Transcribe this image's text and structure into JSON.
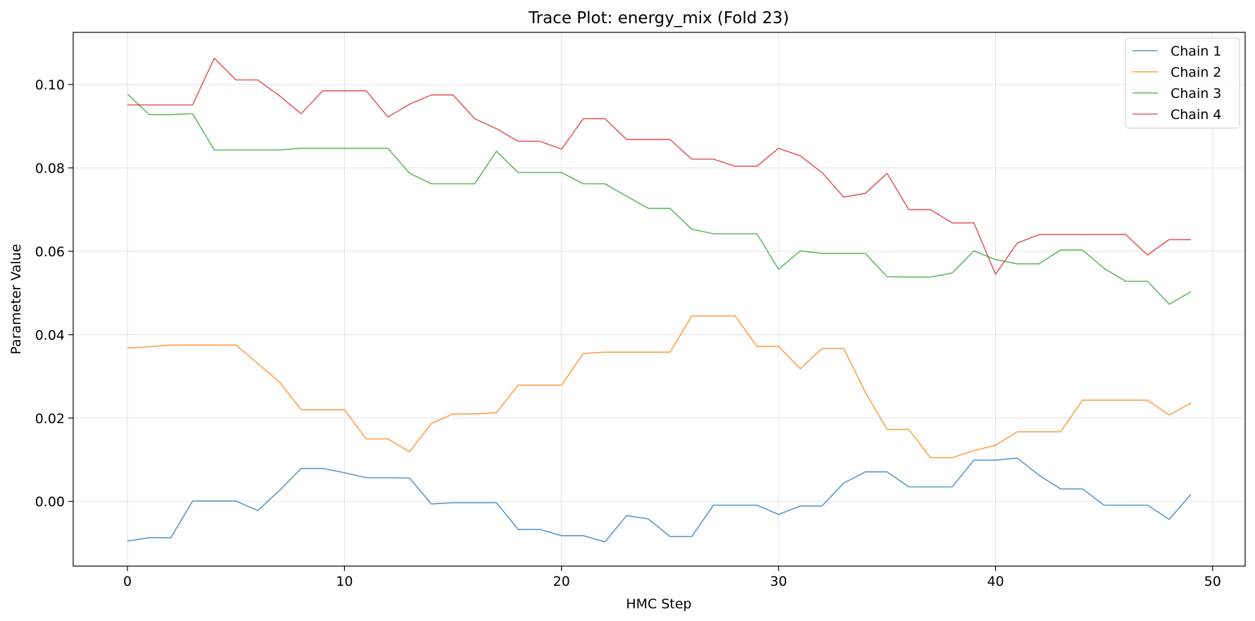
{
  "chart_data": {
    "type": "line",
    "title": "Trace Plot: energy_mix (Fold 23)",
    "xlabel": "HMC Step",
    "ylabel": "Parameter Value",
    "xlim": [
      -2.5,
      51.5
    ],
    "ylim": [
      -0.0155,
      0.1125
    ],
    "xticks": [
      0,
      10,
      20,
      30,
      40,
      50
    ],
    "yticks": [
      0.0,
      0.02,
      0.04,
      0.06,
      0.08,
      0.1
    ],
    "ytick_labels": [
      "0.00",
      "0.02",
      "0.04",
      "0.06",
      "0.08",
      "0.10"
    ],
    "grid": true,
    "legend_position": "top-right",
    "x": [
      0,
      1,
      2,
      3,
      4,
      5,
      6,
      7,
      8,
      9,
      10,
      11,
      12,
      13,
      14,
      15,
      16,
      17,
      18,
      19,
      20,
      21,
      22,
      23,
      24,
      25,
      26,
      27,
      28,
      29,
      30,
      31,
      32,
      33,
      34,
      35,
      36,
      37,
      38,
      39,
      40,
      41,
      42,
      43,
      44,
      45,
      46,
      47,
      48,
      49
    ],
    "series": [
      {
        "name": "Chain 1",
        "color": "#1f77b4",
        "values": [
          -0.0095,
          -0.0087,
          -0.0087,
          0.0001,
          0.0001,
          0.0001,
          -0.0022,
          0.0026,
          0.0079,
          0.0079,
          0.0069,
          0.0057,
          0.0057,
          0.0056,
          -0.0006,
          -0.0003,
          -0.0003,
          -0.0003,
          -0.0067,
          -0.0067,
          -0.0082,
          -0.0082,
          -0.0097,
          -0.0034,
          -0.0042,
          -0.0084,
          -0.0084,
          -0.0009,
          -0.0009,
          -0.0009,
          -0.0031,
          -0.0011,
          -0.0011,
          0.0044,
          0.0071,
          0.0071,
          0.0035,
          0.0035,
          0.0035,
          0.0099,
          0.0099,
          0.0104,
          0.0063,
          0.003,
          0.003,
          -0.0009,
          -0.0009,
          -0.0009,
          -0.0043,
          0.0017
        ]
      },
      {
        "name": "Chain 2",
        "color": "#ff7f0e",
        "values": [
          0.0368,
          0.0371,
          0.0375,
          0.0375,
          0.0375,
          0.0375,
          0.0331,
          0.0287,
          0.022,
          0.022,
          0.022,
          0.015,
          0.015,
          0.0119,
          0.0187,
          0.021,
          0.021,
          0.0213,
          0.0279,
          0.0279,
          0.0279,
          0.0355,
          0.0358,
          0.0358,
          0.0358,
          0.0358,
          0.0445,
          0.0445,
          0.0445,
          0.0372,
          0.0372,
          0.0318,
          0.0367,
          0.0367,
          0.0262,
          0.0173,
          0.0173,
          0.0105,
          0.0105,
          0.0122,
          0.0135,
          0.0167,
          0.0167,
          0.0167,
          0.0243,
          0.0243,
          0.0243,
          0.0243,
          0.0207,
          0.0236
        ]
      },
      {
        "name": "Chain 3",
        "color": "#2ca02c",
        "values": [
          0.0977,
          0.0928,
          0.0928,
          0.093,
          0.0843,
          0.0843,
          0.0843,
          0.0843,
          0.0847,
          0.0847,
          0.0847,
          0.0847,
          0.0847,
          0.0787,
          0.0762,
          0.0762,
          0.0762,
          0.084,
          0.0789,
          0.0789,
          0.0789,
          0.0762,
          0.0762,
          0.0732,
          0.0703,
          0.0703,
          0.0653,
          0.0642,
          0.0642,
          0.0642,
          0.0557,
          0.0601,
          0.0595,
          0.0595,
          0.0595,
          0.0539,
          0.0538,
          0.0538,
          0.0548,
          0.0601,
          0.058,
          0.057,
          0.057,
          0.0603,
          0.0603,
          0.0559,
          0.0528,
          0.0528,
          0.0473,
          0.0503
        ]
      },
      {
        "name": "Chain 4",
        "color": "#d62728",
        "values": [
          0.0951,
          0.0951,
          0.0951,
          0.0951,
          0.1063,
          0.1011,
          0.1011,
          0.0973,
          0.093,
          0.0985,
          0.0985,
          0.0985,
          0.0922,
          0.0953,
          0.0975,
          0.0975,
          0.0918,
          0.0894,
          0.0864,
          0.0864,
          0.0845,
          0.0918,
          0.0918,
          0.0868,
          0.0868,
          0.0868,
          0.0821,
          0.0821,
          0.0804,
          0.0804,
          0.0847,
          0.0829,
          0.0789,
          0.073,
          0.0739,
          0.0787,
          0.07,
          0.07,
          0.0668,
          0.0668,
          0.0545,
          0.062,
          0.064,
          0.064,
          0.064,
          0.064,
          0.064,
          0.0591,
          0.0628,
          0.0628
        ]
      }
    ]
  }
}
